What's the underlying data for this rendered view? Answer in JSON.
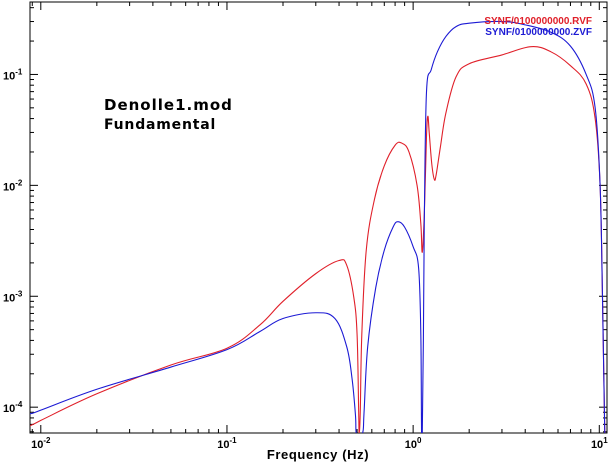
{
  "chart_data": {
    "type": "line",
    "xscale": "log",
    "yscale": "log",
    "xlim": [
      0.00875,
      11.0
    ],
    "ylim": [
      5.85e-05,
      0.45
    ],
    "xlabel": "Frequency (Hz)",
    "ylabel": "",
    "grid": false,
    "legend_position": "top-right",
    "annotations": [
      "Denolle1.mod",
      "Fundamental"
    ],
    "x_ticks": [
      {
        "value": 0.01,
        "base": "10",
        "exp": "-2"
      },
      {
        "value": 0.1,
        "base": "10",
        "exp": "-1"
      },
      {
        "value": 1,
        "base": "10",
        "exp": "0"
      },
      {
        "value": 10,
        "base": "10",
        "exp": "1"
      }
    ],
    "y_ticks": [
      {
        "value": 0.0001,
        "base": "10",
        "exp": "-4"
      },
      {
        "value": 0.001,
        "base": "10",
        "exp": "-3"
      },
      {
        "value": 0.01,
        "base": "10",
        "exp": "-2"
      },
      {
        "value": 0.1,
        "base": "10",
        "exp": "-1"
      }
    ],
    "series": [
      {
        "name": "SYNF/0100000000.RVF",
        "color": "#e0202a",
        "points": [
          [
            0.00875,
            6.8e-05
          ],
          [
            0.01,
            7.6e-05
          ],
          [
            0.02,
            0.000132
          ],
          [
            0.05,
            0.00024
          ],
          [
            0.1,
            0.00034
          ],
          [
            0.15,
            0.00055
          ],
          [
            0.2,
            0.0009
          ],
          [
            0.3,
            0.0016
          ],
          [
            0.4,
            0.0021
          ],
          [
            0.44,
            0.0019
          ],
          [
            0.48,
            0.00098
          ],
          [
            0.5,
            0.00045
          ],
          [
            0.51,
            9e-05
          ],
          [
            0.513,
            5.85e-05
          ],
          [
            0.52,
            9e-05
          ],
          [
            0.53,
            0.00045
          ],
          [
            0.56,
            0.0026
          ],
          [
            0.62,
            0.0075
          ],
          [
            0.7,
            0.015
          ],
          [
            0.8,
            0.023
          ],
          [
            0.87,
            0.024
          ],
          [
            0.95,
            0.02
          ],
          [
            1.05,
            0.01
          ],
          [
            1.1,
            0.0045
          ],
          [
            1.12,
            0.0025
          ],
          [
            1.15,
            0.006
          ],
          [
            1.18,
            0.028
          ],
          [
            1.2,
            0.042
          ],
          [
            1.22,
            0.03
          ],
          [
            1.26,
            0.0155
          ],
          [
            1.3,
            0.0113
          ],
          [
            1.33,
            0.0125
          ],
          [
            1.4,
            0.022
          ],
          [
            1.5,
            0.045
          ],
          [
            1.7,
            0.095
          ],
          [
            2.0,
            0.125
          ],
          [
            3.0,
            0.15
          ],
          [
            4.3,
            0.178
          ],
          [
            5.5,
            0.16
          ],
          [
            7.0,
            0.12
          ],
          [
            8.5,
            0.082
          ],
          [
            9.5,
            0.04
          ],
          [
            10.1,
            0.01
          ],
          [
            10.4,
            0.001
          ],
          [
            10.6,
            0.00015
          ],
          [
            10.7,
            5.85e-05
          ]
        ]
      },
      {
        "name": "SYNF/0100000000.ZVF",
        "color": "#1c1ad4",
        "points": [
          [
            0.00875,
            8.7e-05
          ],
          [
            0.01,
            9.4e-05
          ],
          [
            0.02,
            0.000145
          ],
          [
            0.05,
            0.00023
          ],
          [
            0.1,
            0.00033
          ],
          [
            0.15,
            0.00048
          ],
          [
            0.2,
            0.00063
          ],
          [
            0.3,
            0.00071
          ],
          [
            0.38,
            0.00063
          ],
          [
            0.44,
            0.00035
          ],
          [
            0.47,
            0.00018
          ],
          [
            0.49,
            8.5e-05
          ],
          [
            0.495,
            5.85e-05
          ],
          [
            0.535,
            5.85e-05
          ],
          [
            0.545,
            9e-05
          ],
          [
            0.57,
            0.00035
          ],
          [
            0.63,
            0.0012
          ],
          [
            0.7,
            0.0026
          ],
          [
            0.78,
            0.0042
          ],
          [
            0.83,
            0.0047
          ],
          [
            0.9,
            0.0042
          ],
          [
            1.0,
            0.0028
          ],
          [
            1.07,
            0.0018
          ],
          [
            1.1,
            0.00045
          ],
          [
            1.11,
            5.85e-05
          ],
          [
            1.12,
            5.85e-05
          ],
          [
            1.135,
            0.0004
          ],
          [
            1.15,
            0.006
          ],
          [
            1.18,
            0.07
          ],
          [
            1.25,
            0.11
          ],
          [
            1.35,
            0.16
          ],
          [
            1.5,
            0.22
          ],
          [
            1.7,
            0.27
          ],
          [
            2.0,
            0.29
          ],
          [
            3.0,
            0.3
          ],
          [
            4.0,
            0.28
          ],
          [
            5.5,
            0.24
          ],
          [
            7.0,
            0.18
          ],
          [
            8.5,
            0.1
          ],
          [
            9.5,
            0.05
          ],
          [
            10.1,
            0.01
          ],
          [
            10.4,
            0.001
          ],
          [
            10.6,
            0.00015
          ],
          [
            10.7,
            5.85e-05
          ]
        ]
      }
    ]
  }
}
